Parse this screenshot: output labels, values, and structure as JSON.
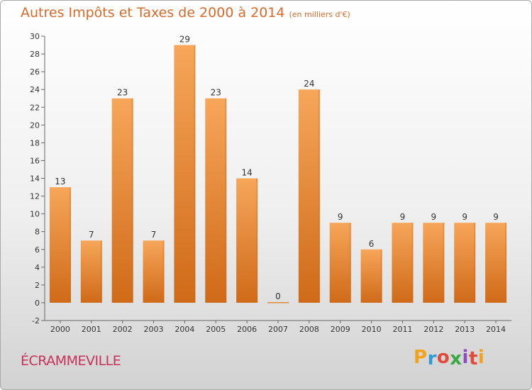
{
  "chart_data": {
    "type": "bar",
    "title": "Autres Impôts et Taxes de 2000 à 2014",
    "subtitle": "(en milliers d'€)",
    "categories": [
      "2000",
      "2001",
      "2002",
      "2003",
      "2004",
      "2005",
      "2006",
      "2007",
      "2008",
      "2009",
      "2010",
      "2011",
      "2012",
      "2013",
      "2014"
    ],
    "values": [
      13,
      7,
      23,
      7,
      29,
      23,
      14,
      0,
      24,
      9,
      6,
      9,
      9,
      9,
      9
    ],
    "ylim": [
      -2,
      30
    ],
    "yticks": [
      -2,
      0,
      2,
      4,
      6,
      8,
      10,
      12,
      14,
      16,
      18,
      20,
      22,
      24,
      26,
      28,
      30
    ],
    "grid": false,
    "bar_color": "#f0913a",
    "bar_color_light": "#f7a65a",
    "bar_color_dark": "#cf6a18"
  },
  "footer": {
    "place_name": "ÉCRAMMEVILLE",
    "logo_letters": [
      "P",
      "r",
      "o",
      "x",
      "i",
      "t",
      "i"
    ],
    "logo_colors": [
      "#f2a21b",
      "#2e9ad6",
      "#e24b3b",
      "#3aa845",
      "#8c4cbd",
      "#e24b3b",
      "#f2a21b"
    ]
  },
  "colors": {
    "title": "#d86a2a",
    "place": "#c8315a",
    "axis": "#666666"
  }
}
